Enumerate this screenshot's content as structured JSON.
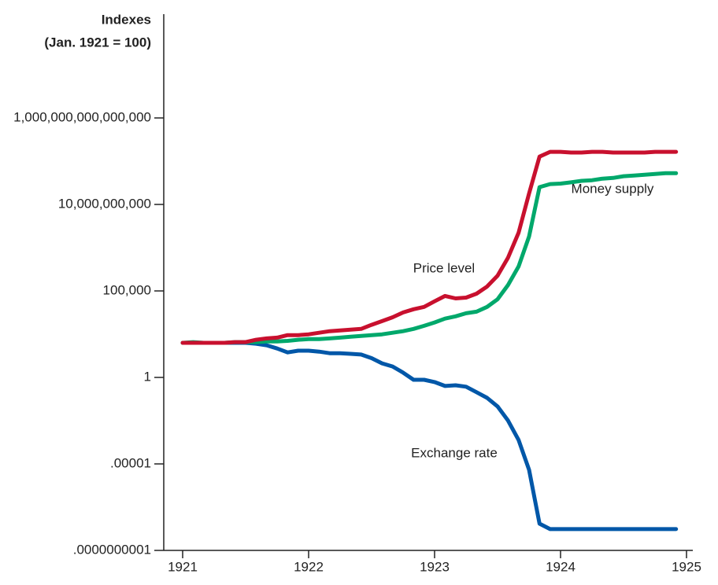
{
  "chart_data": {
    "type": "line",
    "ylabel": "Indexes",
    "ylabel_note": "(Jan. 1921 = 100)",
    "log_y": true,
    "x": [
      1921,
      1921.083,
      1921.167,
      1921.25,
      1921.333,
      1921.417,
      1921.5,
      1921.583,
      1921.667,
      1921.75,
      1921.833,
      1921.917,
      1922,
      1922.083,
      1922.167,
      1922.25,
      1922.333,
      1922.417,
      1922.5,
      1922.583,
      1922.667,
      1922.75,
      1922.833,
      1922.917,
      1923,
      1923.083,
      1923.167,
      1923.25,
      1923.333,
      1923.417,
      1923.5,
      1923.583,
      1923.667,
      1923.75,
      1923.833,
      1923.917,
      1924,
      1924.083,
      1924.167,
      1924.25,
      1924.333,
      1924.417,
      1924.5,
      1924.583,
      1924.667,
      1924.75,
      1924.833,
      1924.917
    ],
    "series": [
      {
        "name": "Price level",
        "color": "#c8102e",
        "values": [
          100,
          100,
          100,
          100,
          100,
          110,
          110,
          150,
          180,
          200,
          280,
          280,
          310,
          380,
          470,
          520,
          580,
          640,
          1100,
          1800,
          3000,
          5700,
          8700,
          12000,
          25000,
          51000,
          37000,
          41000,
          69000,
          180000,
          760000,
          8400000,
          230000000,
          43000000000,
          5800000000000,
          11000000000000,
          11000000000000,
          10000000000000,
          10000000000000,
          11000000000000,
          11000000000000,
          10000000000000,
          10000000000000,
          10000000000000,
          10000000000000,
          11000000000000,
          11000000000000,
          11000000000000
        ]
      },
      {
        "name": "Money supply",
        "color": "#00a86b",
        "values": [
          100,
          110,
          100,
          100,
          100,
          110,
          110,
          110,
          120,
          120,
          130,
          150,
          165,
          165,
          180,
          200,
          225,
          250,
          280,
          310,
          380,
          470,
          640,
          960,
          1500,
          2500,
          3400,
          5100,
          6300,
          12000,
          33000,
          220000,
          2600000,
          140000000,
          100000000000,
          150000000000,
          160000000000,
          190000000000,
          230000000000,
          250000000000,
          310000000000,
          340000000000,
          430000000000,
          470000000000,
          520000000000,
          580000000000,
          640000000000,
          640000000000
        ]
      },
      {
        "name": "Exchange rate",
        "color": "#0057a8",
        "values": [
          100,
          100,
          100,
          100,
          100,
          100,
          100,
          89,
          72,
          47,
          28,
          35,
          35,
          31,
          25,
          25,
          23,
          21,
          13,
          6.5,
          4.3,
          1.9,
          0.73,
          0.73,
          0.54,
          0.32,
          0.35,
          0.29,
          0.14,
          0.066,
          0.021,
          0.0032,
          0.00024,
          4.6e-06,
          3.5e-09,
          1.7e-09,
          1.7e-09,
          1.7e-09,
          1.7e-09,
          1.7e-09,
          1.7e-09,
          1.7e-09,
          1.7e-09,
          1.7e-09,
          1.7e-09,
          1.7e-09,
          1.7e-09,
          1.7e-09
        ]
      }
    ],
    "xlim": [
      1920.85,
      1925.05
    ],
    "xticks": [
      1921,
      1922,
      1923,
      1924,
      1925
    ],
    "ylim": [
      1e-10,
      1e+21
    ],
    "yticks": [
      {
        "value": 1e-10,
        "label": ".0000000001"
      },
      {
        "value": 1e-05,
        "label": ".00001"
      },
      1,
      {
        "value": 100000,
        "label": "100,000"
      },
      {
        "value": 10000000000,
        "label": "10,000,000,000"
      },
      {
        "value": 1000000000000000.0,
        "label": "1,000,000,000,000,000"
      }
    ]
  }
}
